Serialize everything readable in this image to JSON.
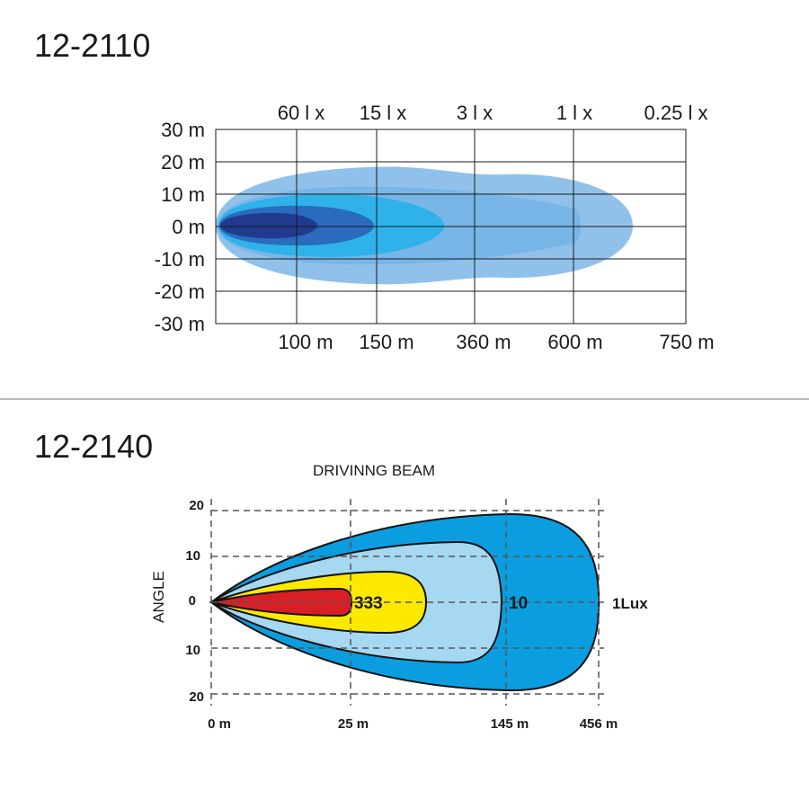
{
  "charts": [
    {
      "model": "12-2110",
      "chart_data": {
        "type": "area",
        "y_ticks": [
          "30 m",
          "20 m",
          "10 m",
          "0 m",
          "-10 m",
          "-20 m",
          "-30 m"
        ],
        "ylim": [
          -30,
          30
        ],
        "x_ticks": [
          "100 m",
          "150 m",
          "360 m",
          "600 m",
          "750 m"
        ],
        "lux_labels": [
          "60 l x",
          "15 l x",
          "3 l x",
          "1 l x",
          "0.25 l x"
        ],
        "grid": true,
        "colors": [
          "#8fc1ea",
          "#73b4e6",
          "#2fb2ea",
          "#2a6bbd",
          "#203a8e"
        ]
      }
    },
    {
      "model": "12-2140",
      "chart_data": {
        "type": "area",
        "title": "DRIVINNG  BEAM",
        "ylabel": "ANGLE",
        "y_ticks": [
          "20",
          "10",
          "0",
          "10",
          "20"
        ],
        "x_ticks": [
          "0 m",
          "25 m",
          "145 m",
          "456 m"
        ],
        "isolux_labels": [
          "333",
          "10",
          "1Lux"
        ],
        "grid": true,
        "colors": [
          "#0a9ee0",
          "#a7d8f2",
          "#fde900",
          "#d81f26"
        ]
      }
    }
  ]
}
